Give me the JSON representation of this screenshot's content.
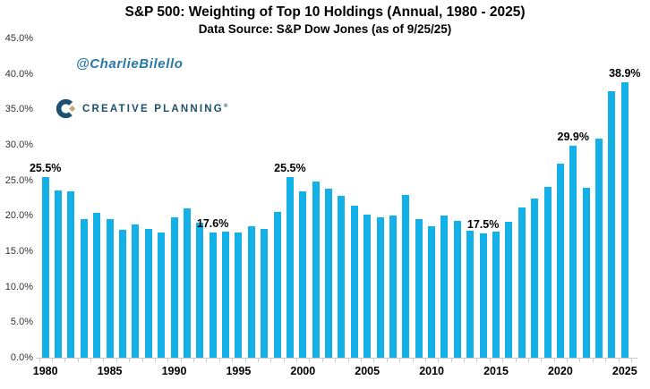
{
  "header": {
    "title": "S&P 500: Weighting of Top 10 Holdings (Annual, 1980 - 2025)",
    "subtitle": "Data Source: S&P Dow Jones (as of 9/25/25)"
  },
  "watermark": "@CharlieBilello",
  "logo": {
    "text": "CREATIVE PLANNING",
    "reg_mark": "®"
  },
  "colors": {
    "bar": "#14b1e8",
    "watermark_blue": "#2878a8",
    "logo_navy": "#1d4f6e",
    "logo_gold": "#c3a572",
    "axis": "#c9c9c9",
    "text": "#000000"
  },
  "chart_data": {
    "type": "bar",
    "title": "S&P 500: Weighting of Top 10 Holdings (Annual, 1980 - 2025)",
    "xlabel": "",
    "ylabel": "",
    "ylim": [
      0,
      45
    ],
    "grid": false,
    "legend": null,
    "x": [
      1980,
      1981,
      1982,
      1983,
      1984,
      1985,
      1986,
      1987,
      1988,
      1989,
      1990,
      1991,
      1992,
      1993,
      1994,
      1995,
      1996,
      1997,
      1998,
      1999,
      2000,
      2001,
      2002,
      2003,
      2004,
      2005,
      2006,
      2007,
      2008,
      2009,
      2010,
      2011,
      2012,
      2013,
      2014,
      2015,
      2016,
      2017,
      2018,
      2019,
      2020,
      2021,
      2022,
      2023,
      2024,
      2025
    ],
    "values": [
      25.5,
      23.6,
      23.5,
      19.6,
      20.4,
      19.6,
      18.0,
      18.8,
      18.2,
      17.7,
      19.8,
      21.0,
      19.0,
      17.6,
      17.8,
      17.7,
      18.5,
      18.2,
      20.5,
      25.5,
      23.5,
      24.9,
      23.8,
      22.8,
      21.4,
      20.2,
      19.8,
      20.1,
      22.9,
      19.6,
      18.5,
      20.0,
      19.3,
      17.9,
      17.5,
      17.8,
      19.2,
      21.2,
      22.4,
      24.1,
      27.4,
      29.9,
      24.0,
      30.9,
      37.6,
      38.9
    ],
    "y_ticks": [
      "0.0%",
      "5.0%",
      "10.0%",
      "15.0%",
      "20.0%",
      "25.0%",
      "30.0%",
      "35.0%",
      "40.0%",
      "45.0%"
    ],
    "x_tick_years": [
      1980,
      1985,
      1990,
      1995,
      2000,
      2005,
      2010,
      2015,
      2020,
      2025
    ],
    "callouts": [
      {
        "year": 1980,
        "label": "25.5%"
      },
      {
        "year": 1993,
        "label": "17.6%"
      },
      {
        "year": 1999,
        "label": "25.5%"
      },
      {
        "year": 2014,
        "label": "17.5%"
      },
      {
        "year": 2021,
        "label": "29.9%"
      },
      {
        "year": 2025,
        "label": "38.9%"
      }
    ]
  }
}
